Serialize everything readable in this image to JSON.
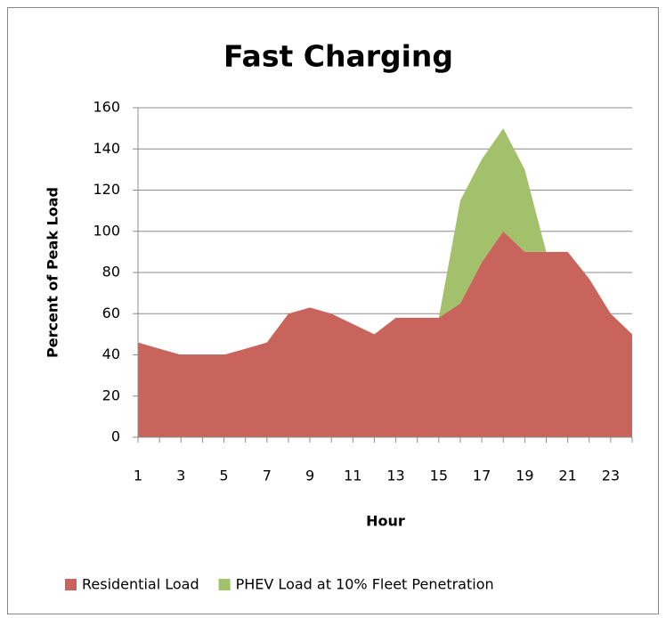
{
  "chart_data": {
    "type": "stacked-area",
    "title": "Fast Charging",
    "x_label": "Hour",
    "y_label": "Percent of Peak Load",
    "categories": [
      1,
      null,
      3,
      null,
      5,
      null,
      7,
      null,
      9,
      null,
      11,
      null,
      13,
      null,
      15,
      null,
      17,
      null,
      19,
      null,
      21,
      null,
      23,
      null
    ],
    "series": [
      {
        "name": "Residential Load",
        "color": "#c9645c",
        "values": [
          46,
          43,
          40,
          40,
          40,
          43,
          46,
          60,
          63,
          60,
          55,
          50,
          58,
          58,
          58,
          65,
          85,
          100,
          90,
          90,
          90,
          77,
          60,
          50
        ]
      },
      {
        "name": "PHEV Load at 10% Fleet Penetration",
        "color": "#a3c16b",
        "values": [
          0,
          0,
          0,
          0,
          0,
          0,
          0,
          0,
          0,
          0,
          0,
          0,
          0,
          0,
          0,
          50,
          50,
          50,
          40,
          0,
          0,
          0,
          0,
          0
        ]
      }
    ],
    "ylim": [
      0,
      160
    ],
    "yticks": [
      0,
      20,
      40,
      60,
      80,
      100,
      120,
      140,
      160
    ],
    "grid": true,
    "legend": "bottom"
  }
}
